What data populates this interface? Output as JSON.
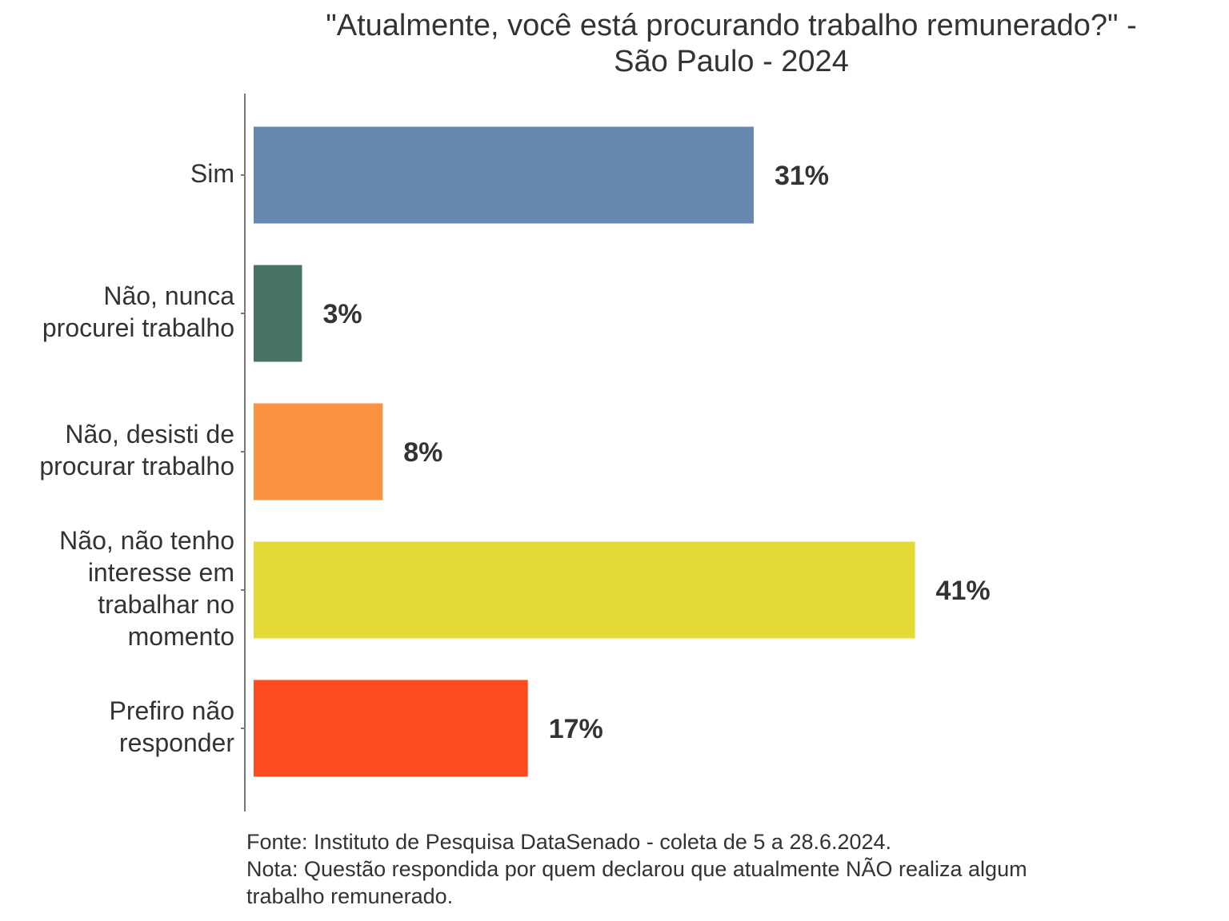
{
  "chart_data": {
    "type": "bar",
    "orientation": "horizontal",
    "title_lines": [
      "\"Atualmente, você está procurando trabalho remunerado?\" -",
      "São Paulo - 2024"
    ],
    "categories": [
      [
        "Sim"
      ],
      [
        "Não, nunca",
        "procurei trabalho"
      ],
      [
        "Não, desisti de",
        "procurar trabalho"
      ],
      [
        "Não, não tenho",
        "interesse em",
        "trabalhar no",
        "momento"
      ],
      [
        "Prefiro não",
        "responder"
      ]
    ],
    "values": [
      31,
      3,
      8,
      41,
      17
    ],
    "data_labels": [
      "31%",
      "3%",
      "8%",
      "41%",
      "17%"
    ],
    "colors": [
      "#6687AE",
      "#467362",
      "#FB923F",
      "#E4D935",
      "#FE4B22"
    ],
    "xlim": [
      0,
      41
    ],
    "unit": "%",
    "grid": false,
    "legend": "none"
  },
  "notes": [
    "Fonte: Instituto de Pesquisa DataSenado - coleta de 5 a 28.6.2024.",
    "Nota: Questão respondida por quem declarou que atualmente NÃO realiza algum",
    "trabalho remunerado."
  ]
}
